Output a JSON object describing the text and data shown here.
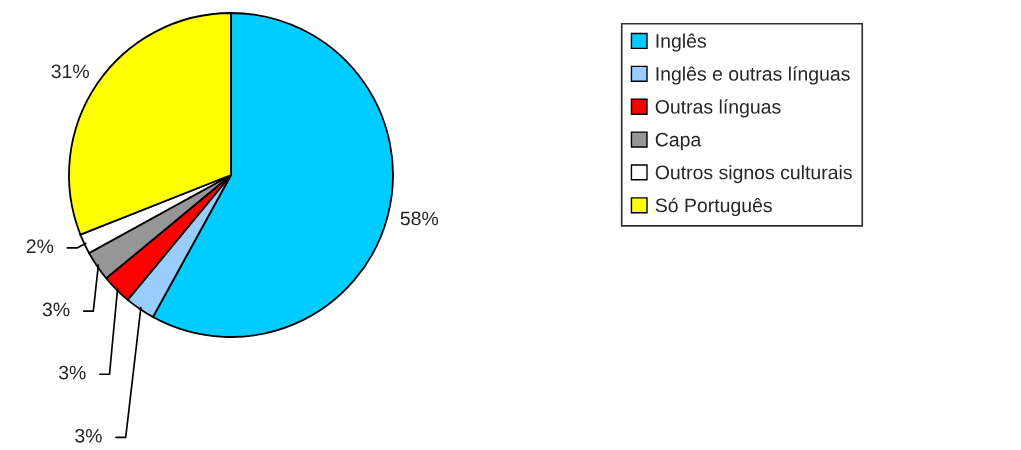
{
  "chart_data": {
    "type": "pie",
    "categories": [
      "Inglês",
      "Inglês e outras línguas",
      "Outras línguas",
      "Capa",
      "Outros signos culturais",
      "Só Português"
    ],
    "values": [
      58,
      3,
      3,
      3,
      2,
      31
    ],
    "colors": [
      "#00ccff",
      "#99ccff",
      "#ff0000",
      "#969696",
      "#ffffff",
      "#ffff00"
    ],
    "value_labels": [
      "58%",
      "3%",
      "3%",
      "3%",
      "2%",
      "31%"
    ],
    "legend": "right"
  }
}
